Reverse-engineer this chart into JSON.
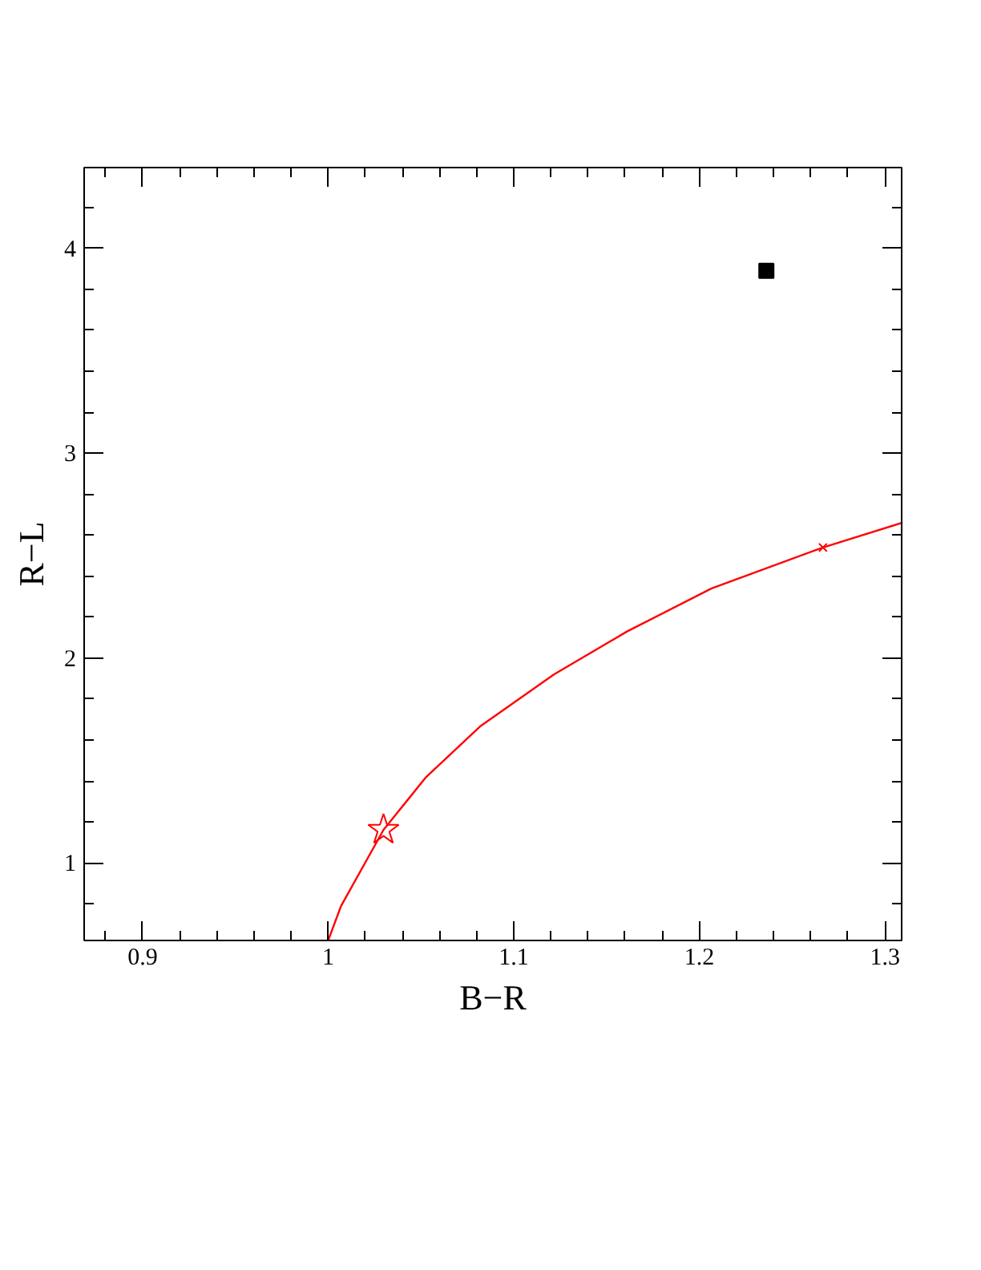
{
  "chart_data": {
    "type": "line",
    "xlabel": "B−R",
    "ylabel": "R−L",
    "xlim": [
      0.8685,
      1.309
    ],
    "ylim": [
      0.622,
      4.394
    ],
    "xticks": [
      0.9,
      1,
      1.1,
      1.2,
      1.3,
      {
        "value": 0.88,
        "label": null
      },
      {
        "value": 0.92,
        "label": null
      },
      {
        "value": 0.94,
        "label": null
      },
      {
        "value": 0.96,
        "label": null
      },
      {
        "value": 0.98,
        "label": null
      },
      {
        "value": 1.02,
        "label": null
      },
      {
        "value": 1.04,
        "label": null
      },
      {
        "value": 1.06,
        "label": null
      },
      {
        "value": 1.08,
        "label": null
      },
      {
        "value": 1.12,
        "label": null
      },
      {
        "value": 1.14,
        "label": null
      },
      {
        "value": 1.16,
        "label": null
      },
      {
        "value": 1.18,
        "label": null
      },
      {
        "value": 1.22,
        "label": null
      },
      {
        "value": 1.24,
        "label": null
      },
      {
        "value": 1.26,
        "label": null
      },
      {
        "value": 1.28,
        "label": null
      }
    ],
    "yticks": [
      1,
      2,
      3,
      4,
      {
        "value": 0.8,
        "label": null
      },
      {
        "value": 1.2,
        "label": null
      },
      {
        "value": 1.4,
        "label": null
      },
      {
        "value": 1.6,
        "label": null
      },
      {
        "value": 1.8,
        "label": null
      },
      {
        "value": 2.2,
        "label": null
      },
      {
        "value": 2.4,
        "label": null
      },
      {
        "value": 2.6,
        "label": null
      },
      {
        "value": 2.8,
        "label": null
      },
      {
        "value": 3.2,
        "label": null
      },
      {
        "value": 3.4,
        "label": null
      },
      {
        "value": 3.6,
        "label": null
      },
      {
        "value": 3.8,
        "label": null
      },
      {
        "value": 4.2,
        "label": null
      }
    ],
    "grid": false,
    "series": [
      {
        "color": "#ff0000",
        "marker": "none",
        "line_style": "solid",
        "x": [
          1.0,
          1.0069,
          1.0298,
          1.0528,
          1.0823,
          1.1216,
          1.161,
          1.2066,
          1.2666,
          1.309
        ],
        "values": [
          0.622,
          0.79,
          1.162,
          1.42,
          1.67,
          1.92,
          2.13,
          2.34,
          2.54,
          2.66
        ]
      },
      {
        "type": "scatter",
        "color": "#ff0000",
        "marker": "star",
        "x": [
          1.0298
        ],
        "values": [
          1.162
        ]
      },
      {
        "type": "scatter",
        "color": "#ff0000",
        "marker": "cross",
        "x": [
          1.2666
        ],
        "values": [
          2.54
        ]
      },
      {
        "type": "scatter",
        "color": "#000000",
        "marker": "square",
        "x": [
          1.2361
        ],
        "values": [
          3.89
        ]
      }
    ]
  }
}
